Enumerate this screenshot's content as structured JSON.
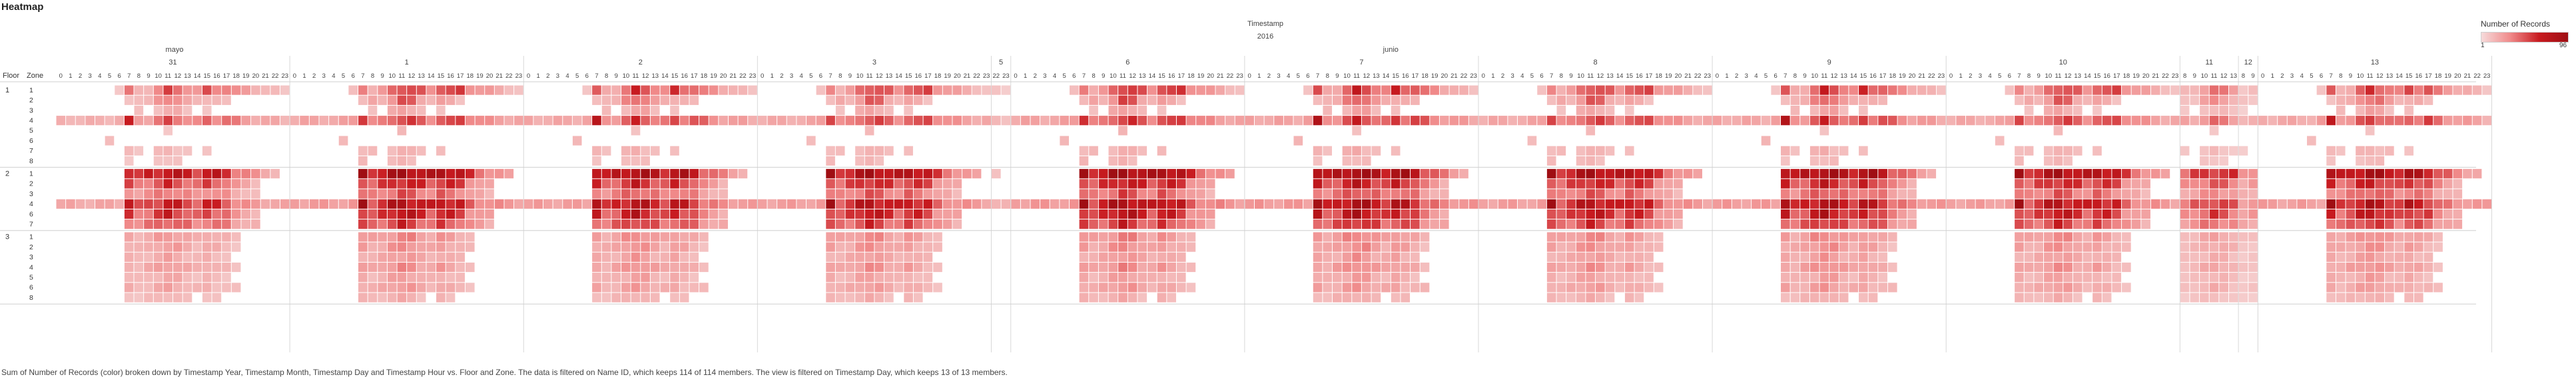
{
  "title": "Heatmap",
  "header": {
    "dimension": "Timestamp",
    "year": "2016"
  },
  "row_headers": {
    "floor": "Floor",
    "zone": "Zone"
  },
  "legend": {
    "title": "Number of Records",
    "min": "1",
    "max": "96"
  },
  "caption": "Sum of Number of Records (color) broken down by Timestamp Year, Timestamp Month, Timestamp Day and Timestamp Hour vs. Floor and Zone. The data is filtered on Name ID, which keeps 114 of 114 members. The view is filtered on Timestamp Day, which keeps 13 of 13 members.",
  "colors": {
    "low": "#f6dada",
    "mid": "#f08a8a",
    "high": "#c81b20",
    "max": "#9f0e13",
    "empty": "#ffffff",
    "grid": "#e4e4e4"
  },
  "chart_data": {
    "type": "heatmap",
    "value_label": "Number of Records",
    "color_range": [
      1,
      96
    ],
    "months": [
      {
        "label": "mayo",
        "days": [
          "31"
        ]
      },
      {
        "label": "junio",
        "days": [
          "1",
          "2",
          "3",
          "5",
          "6",
          "7",
          "8",
          "9",
          "10",
          "11",
          "12",
          "13"
        ]
      }
    ],
    "columns": [
      {
        "day": "31",
        "hours": [
          "0",
          "1",
          "2",
          "3",
          "4",
          "5",
          "6",
          "7",
          "8",
          "9",
          "10",
          "11",
          "12",
          "13",
          "14",
          "15",
          "16",
          "17",
          "18",
          "19",
          "20",
          "21",
          "22",
          "23"
        ]
      },
      {
        "day": "1",
        "hours": [
          "0",
          "1",
          "2",
          "3",
          "4",
          "5",
          "6",
          "7",
          "8",
          "9",
          "10",
          "11",
          "12",
          "13",
          "14",
          "15",
          "16",
          "17",
          "18",
          "19",
          "20",
          "21",
          "22",
          "23"
        ]
      },
      {
        "day": "2",
        "hours": [
          "0",
          "1",
          "2",
          "3",
          "4",
          "5",
          "6",
          "7",
          "8",
          "9",
          "10",
          "11",
          "12",
          "13",
          "14",
          "15",
          "16",
          "17",
          "18",
          "19",
          "20",
          "21",
          "22",
          "23"
        ]
      },
      {
        "day": "3",
        "hours": [
          "0",
          "1",
          "2",
          "3",
          "4",
          "5",
          "6",
          "7",
          "8",
          "9",
          "10",
          "11",
          "12",
          "13",
          "14",
          "15",
          "16",
          "17",
          "18",
          "19",
          "20",
          "21",
          "22",
          "23"
        ]
      },
      {
        "day": "5",
        "hours": [
          "22",
          "23"
        ]
      },
      {
        "day": "6",
        "hours": [
          "0",
          "1",
          "2",
          "3",
          "4",
          "5",
          "6",
          "7",
          "8",
          "9",
          "10",
          "11",
          "12",
          "13",
          "14",
          "15",
          "16",
          "17",
          "18",
          "19",
          "20",
          "21",
          "22",
          "23"
        ]
      },
      {
        "day": "7",
        "hours": [
          "0",
          "1",
          "2",
          "3",
          "4",
          "5",
          "6",
          "7",
          "8",
          "9",
          "10",
          "11",
          "12",
          "13",
          "14",
          "15",
          "16",
          "17",
          "18",
          "19",
          "20",
          "21",
          "22",
          "23"
        ]
      },
      {
        "day": "8",
        "hours": [
          "0",
          "1",
          "2",
          "3",
          "4",
          "5",
          "6",
          "7",
          "8",
          "9",
          "10",
          "11",
          "12",
          "13",
          "14",
          "15",
          "16",
          "17",
          "18",
          "19",
          "20",
          "21",
          "22",
          "23"
        ]
      },
      {
        "day": "9",
        "hours": [
          "0",
          "1",
          "2",
          "3",
          "4",
          "5",
          "6",
          "7",
          "8",
          "9",
          "10",
          "11",
          "12",
          "13",
          "14",
          "15",
          "16",
          "17",
          "18",
          "19",
          "20",
          "21",
          "22",
          "23"
        ]
      },
      {
        "day": "10",
        "hours": [
          "0",
          "1",
          "2",
          "3",
          "4",
          "5",
          "6",
          "7",
          "8",
          "9",
          "10",
          "11",
          "12",
          "13",
          "14",
          "15",
          "16",
          "17",
          "18",
          "19",
          "20",
          "21",
          "22",
          "23"
        ]
      },
      {
        "day": "11",
        "hours": [
          "8",
          "9",
          "10",
          "11",
          "12",
          "13"
        ]
      },
      {
        "day": "12",
        "hours": [
          "8",
          "9"
        ]
      },
      {
        "day": "13",
        "hours": [
          "0",
          "1",
          "2",
          "3",
          "4",
          "5",
          "6",
          "7",
          "8",
          "9",
          "10",
          "11",
          "12",
          "13",
          "14",
          "15",
          "16",
          "17",
          "18",
          "19",
          "20",
          "21",
          "22",
          "23"
        ]
      }
    ],
    "rows": [
      {
        "floor": "1",
        "zones": [
          "1",
          "2",
          "3",
          "4",
          "5",
          "6",
          "7",
          "8"
        ]
      },
      {
        "floor": "2",
        "zones": [
          "1",
          "2",
          "3",
          "4",
          "6",
          "7"
        ]
      },
      {
        "floor": "3",
        "zones": [
          "1",
          "2",
          "3",
          "4",
          "5",
          "6",
          "8"
        ]
      }
    ],
    "row_hour_profiles": [
      {
        "floor": "1",
        "zone": "1",
        "hours_0_23": [
          0,
          0,
          0,
          0,
          0,
          0,
          10,
          40,
          18,
          22,
          40,
          55,
          48,
          40,
          30,
          52,
          44,
          48,
          32,
          28,
          22,
          18,
          14,
          10
        ]
      },
      {
        "floor": "1",
        "zone": "2",
        "hours_0_23": [
          0,
          0,
          0,
          0,
          0,
          0,
          0,
          12,
          18,
          16,
          30,
          44,
          40,
          22,
          16,
          20,
          18,
          12,
          0,
          0,
          0,
          0,
          0,
          0
        ]
      },
      {
        "floor": "1",
        "zone": "3",
        "hours_0_23": [
          0,
          0,
          0,
          0,
          0,
          0,
          0,
          0,
          12,
          0,
          16,
          22,
          20,
          12,
          0,
          10,
          0,
          0,
          0,
          0,
          0,
          0,
          0,
          0
        ]
      },
      {
        "floor": "1",
        "zone": "4",
        "hours_0_23": [
          20,
          20,
          20,
          20,
          20,
          20,
          24,
          65,
          30,
          30,
          42,
          55,
          50,
          40,
          34,
          48,
          42,
          50,
          38,
          30,
          26,
          24,
          22,
          20
        ]
      },
      {
        "floor": "1",
        "zone": "5",
        "hours_0_23": [
          0,
          0,
          0,
          0,
          0,
          0,
          0,
          0,
          0,
          0,
          0,
          12,
          0,
          0,
          0,
          0,
          0,
          0,
          0,
          0,
          0,
          0,
          0,
          0
        ]
      },
      {
        "floor": "1",
        "zone": "6",
        "hours_0_23": [
          0,
          0,
          0,
          0,
          0,
          14,
          0,
          0,
          0,
          0,
          0,
          0,
          0,
          0,
          0,
          0,
          0,
          0,
          0,
          0,
          0,
          0,
          0,
          0
        ]
      },
      {
        "floor": "1",
        "zone": "7",
        "hours_0_23": [
          0,
          0,
          0,
          0,
          0,
          0,
          0,
          14,
          12,
          0,
          14,
          18,
          14,
          12,
          0,
          12,
          0,
          0,
          0,
          0,
          0,
          0,
          0,
          0
        ]
      },
      {
        "floor": "1",
        "zone": "8",
        "hours_0_23": [
          0,
          0,
          0,
          0,
          0,
          0,
          0,
          12,
          0,
          0,
          12,
          14,
          12,
          0,
          0,
          0,
          0,
          0,
          0,
          0,
          0,
          0,
          0,
          0
        ]
      },
      {
        "floor": "2",
        "zone": "1",
        "hours_0_23": [
          0,
          0,
          0,
          0,
          0,
          0,
          0,
          85,
          60,
          70,
          78,
          88,
          82,
          75,
          70,
          80,
          78,
          72,
          50,
          40,
          32,
          26,
          20,
          0
        ]
      },
      {
        "floor": "2",
        "zone": "2",
        "hours_0_23": [
          0,
          0,
          0,
          0,
          0,
          0,
          0,
          55,
          40,
          48,
          56,
          64,
          60,
          52,
          44,
          58,
          55,
          48,
          30,
          24,
          18,
          0,
          0,
          0
        ]
      },
      {
        "floor": "2",
        "zone": "3",
        "hours_0_23": [
          0,
          0,
          0,
          0,
          0,
          0,
          0,
          35,
          30,
          34,
          40,
          46,
          42,
          36,
          30,
          40,
          36,
          32,
          22,
          18,
          14,
          0,
          0,
          0
        ]
      },
      {
        "floor": "2",
        "zone": "4",
        "hours_0_23": [
          24,
          24,
          24,
          24,
          24,
          24,
          24,
          90,
          50,
          60,
          70,
          80,
          72,
          64,
          58,
          72,
          66,
          60,
          40,
          34,
          30,
          28,
          26,
          24
        ]
      },
      {
        "floor": "2",
        "zone": "6",
        "hours_0_23": [
          0,
          0,
          0,
          0,
          0,
          0,
          0,
          60,
          42,
          50,
          62,
          75,
          68,
          55,
          46,
          60,
          56,
          50,
          30,
          24,
          20,
          0,
          0,
          0
        ]
      },
      {
        "floor": "2",
        "zone": "7",
        "hours_0_23": [
          0,
          0,
          0,
          0,
          0,
          0,
          0,
          45,
          38,
          42,
          50,
          58,
          52,
          44,
          36,
          48,
          44,
          40,
          28,
          22,
          18,
          0,
          0,
          0
        ]
      },
      {
        "floor": "3",
        "zone": "1",
        "hours_0_23": [
          0,
          0,
          0,
          0,
          0,
          0,
          0,
          25,
          20,
          22,
          28,
          32,
          30,
          24,
          20,
          26,
          22,
          18,
          14,
          0,
          0,
          0,
          0,
          0
        ]
      },
      {
        "floor": "3",
        "zone": "2",
        "hours_0_23": [
          0,
          0,
          0,
          0,
          0,
          0,
          0,
          22,
          18,
          20,
          26,
          30,
          28,
          22,
          18,
          24,
          20,
          16,
          12,
          0,
          0,
          0,
          0,
          0
        ]
      },
      {
        "floor": "3",
        "zone": "3",
        "hours_0_23": [
          0,
          0,
          0,
          0,
          0,
          0,
          0,
          18,
          16,
          18,
          22,
          26,
          24,
          18,
          16,
          20,
          16,
          14,
          0,
          0,
          0,
          0,
          0,
          0
        ]
      },
      {
        "floor": "3",
        "zone": "4",
        "hours_0_23": [
          0,
          0,
          0,
          0,
          0,
          0,
          0,
          22,
          18,
          22,
          26,
          30,
          28,
          22,
          20,
          24,
          20,
          16,
          12,
          0,
          0,
          0,
          0,
          0
        ]
      },
      {
        "floor": "3",
        "zone": "5",
        "hours_0_23": [
          0,
          0,
          0,
          0,
          0,
          0,
          0,
          18,
          14,
          16,
          20,
          24,
          22,
          16,
          14,
          18,
          14,
          12,
          0,
          0,
          0,
          0,
          0,
          0
        ]
      },
      {
        "floor": "3",
        "zone": "6",
        "hours_0_23": [
          0,
          0,
          0,
          0,
          0,
          0,
          0,
          20,
          16,
          18,
          22,
          26,
          24,
          18,
          16,
          20,
          16,
          14,
          12,
          0,
          0,
          0,
          0,
          0
        ]
      },
      {
        "floor": "3",
        "zone": "8",
        "hours_0_23": [
          0,
          0,
          0,
          0,
          0,
          0,
          0,
          14,
          12,
          14,
          16,
          18,
          16,
          12,
          0,
          14,
          12,
          0,
          0,
          0,
          0,
          0,
          0,
          0
        ]
      }
    ],
    "day_intensity": [
      {
        "day": "31",
        "factor": 0.85
      },
      {
        "day": "1",
        "factor": 1.05
      },
      {
        "day": "2",
        "factor": 1.0
      },
      {
        "day": "3",
        "factor": 1.0
      },
      {
        "day": "5",
        "factor": 0.6
      },
      {
        "day": "6",
        "factor": 1.1
      },
      {
        "day": "7",
        "factor": 1.1
      },
      {
        "day": "8",
        "factor": 1.0
      },
      {
        "day": "9",
        "factor": 1.05
      },
      {
        "day": "10",
        "factor": 1.0
      },
      {
        "day": "11",
        "factor": 0.7
      },
      {
        "day": "12",
        "factor": 0.5
      },
      {
        "day": "13",
        "factor": 1.0
      }
    ]
  }
}
